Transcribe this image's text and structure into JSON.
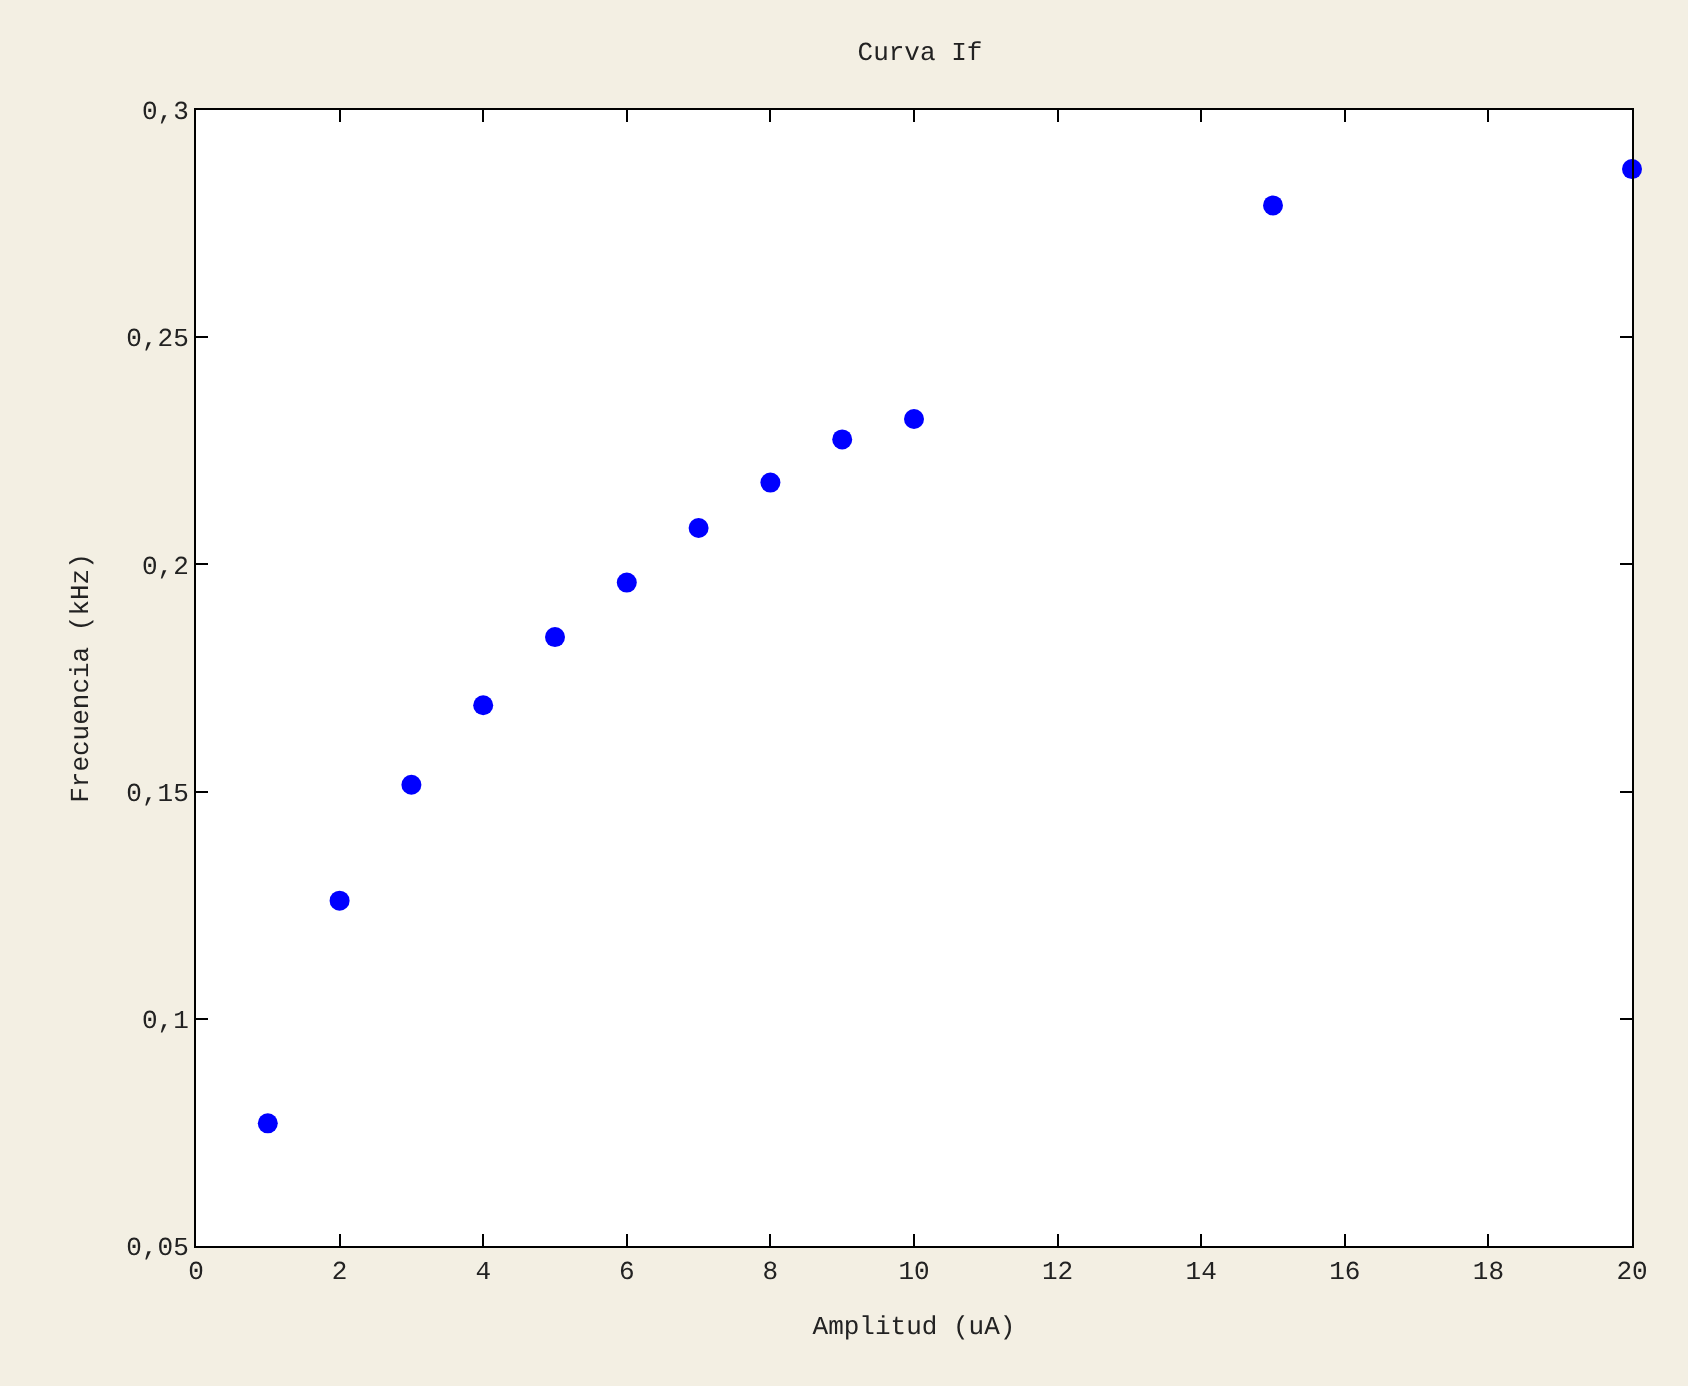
{
  "chart_data": {
    "type": "scatter",
    "title": "Curva If",
    "xlabel": "Amplitud (uA)",
    "ylabel": "Frecuencia (kHz)",
    "x": [
      1,
      2,
      3,
      4,
      5,
      6,
      7,
      8,
      9,
      10,
      15,
      20
    ],
    "series": [
      {
        "color": "#0000ff",
        "values": [
          0.077,
          0.126,
          0.1515,
          0.169,
          0.184,
          0.196,
          0.208,
          0.218,
          0.2275,
          0.232,
          0.279,
          0.287
        ]
      }
    ],
    "xlim": [
      0,
      20
    ],
    "xticks": [
      0,
      2,
      4,
      6,
      8,
      10,
      12,
      14,
      16,
      18,
      20
    ],
    "ylim": [
      0.05,
      0.3
    ],
    "yticks": [
      {
        "value": 0.05,
        "label": "0,05"
      },
      {
        "value": 0.1,
        "label": "0,1"
      },
      {
        "value": 0.15,
        "label": "0,15"
      },
      {
        "value": 0.2,
        "label": "0,2"
      },
      {
        "value": 0.25,
        "label": "0,25"
      },
      {
        "value": 0.3,
        "label": "0,3"
      }
    ],
    "marker": "circle"
  }
}
